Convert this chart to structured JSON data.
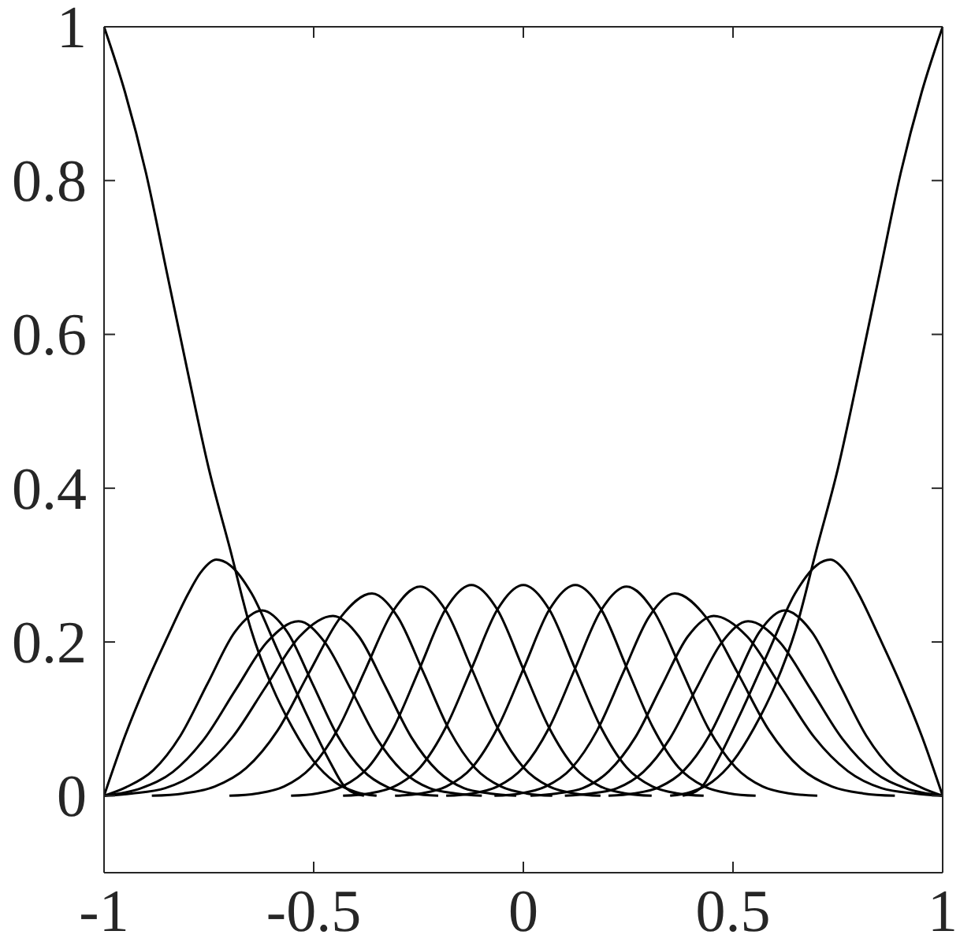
{
  "chart_data": {
    "type": "line",
    "xlim": [
      -1,
      1
    ],
    "ylim": [
      -0.1,
      1
    ],
    "xticks": [
      -1,
      -0.5,
      0,
      0.5,
      1
    ],
    "yticks": [
      0,
      0.2,
      0.4,
      0.6,
      0.8,
      1
    ],
    "line_style": "solid",
    "series": [
      {
        "color": "#000000",
        "x": [
          -1,
          -0.95,
          -0.9,
          -0.85,
          -0.8,
          -0.75,
          -0.7,
          -0.65,
          -0.6,
          -0.55,
          -0.5,
          -0.45,
          -0.4,
          -0.35
        ],
        "values": [
          1,
          0.915,
          0.81,
          0.68,
          0.55,
          0.425,
          0.322,
          0.217,
          0.143,
          0.088,
          0.045,
          0.018,
          0.005,
          0
        ]
      },
      {
        "color": "#000000",
        "x": [
          -1,
          -0.95,
          -0.9,
          -0.85,
          -0.8,
          -0.77,
          -0.732,
          -0.7,
          -0.648,
          -0.585,
          -0.523,
          -0.461,
          -0.423,
          -0.38
        ],
        "values": [
          0,
          0.078,
          0.145,
          0.205,
          0.262,
          0.29,
          0.307,
          0.3,
          0.263,
          0.188,
          0.113,
          0.044,
          0.01,
          0
        ]
      },
      {
        "color": "#000000",
        "x": [
          -1,
          -0.948,
          -0.883,
          -0.818,
          -0.753,
          -0.688,
          -0.623,
          -0.563,
          -0.503,
          -0.443,
          -0.383,
          -0.323,
          -0.263,
          -0.203
        ],
        "values": [
          0,
          0.011,
          0.033,
          0.078,
          0.146,
          0.213,
          0.241,
          0.213,
          0.146,
          0.078,
          0.033,
          0.011,
          0.003,
          0
        ]
      },
      {
        "color": "#000000",
        "x": [
          -1,
          -0.911,
          -0.836,
          -0.761,
          -0.686,
          -0.611,
          -0.536,
          -0.474,
          -0.411,
          -0.349,
          -0.286,
          -0.224,
          -0.161,
          -0.099
        ],
        "values": [
          0,
          0.01,
          0.031,
          0.074,
          0.138,
          0.2,
          0.227,
          0.2,
          0.138,
          0.074,
          0.031,
          0.01,
          0.003,
          0
        ]
      },
      {
        "color": "#000000",
        "x": [
          -1,
          -0.934,
          -0.854,
          -0.774,
          -0.694,
          -0.614,
          -0.534,
          -0.454,
          -0.392,
          -0.329,
          -0.267,
          -0.204,
          -0.142,
          -0.079,
          -0.017
        ],
        "values": [
          0,
          0.003,
          0.01,
          0.032,
          0.076,
          0.142,
          0.207,
          0.234,
          0.207,
          0.142,
          0.076,
          0.032,
          0.01,
          0.003,
          0
        ]
      },
      {
        "color": "#000000",
        "x": [
          -0.886,
          -0.811,
          -0.736,
          -0.661,
          -0.586,
          -0.511,
          -0.436,
          -0.361,
          -0.299,
          -0.238,
          -0.176,
          -0.115,
          -0.053,
          0.008,
          0.069
        ],
        "values": [
          0,
          0.003,
          0.012,
          0.036,
          0.085,
          0.16,
          0.232,
          0.263,
          0.232,
          0.16,
          0.085,
          0.036,
          0.012,
          0.003,
          0
        ]
      },
      {
        "color": "#000000",
        "x": [
          -0.701,
          -0.636,
          -0.571,
          -0.506,
          -0.441,
          -0.376,
          -0.311,
          -0.246,
          -0.184,
          -0.123,
          -0.061,
          0,
          0.062,
          0.123,
          0.184
        ],
        "values": [
          0,
          0.003,
          0.012,
          0.037,
          0.088,
          0.165,
          0.24,
          0.272,
          0.24,
          0.165,
          0.088,
          0.037,
          0.012,
          0.003,
          0
        ]
      },
      {
        "color": "#000000",
        "x": [
          -0.554,
          -0.493,
          -0.432,
          -0.37,
          -0.309,
          -0.247,
          -0.186,
          -0.124,
          -0.062,
          -0.001,
          0.061,
          0.122,
          0.184,
          0.245,
          0.306
        ],
        "values": [
          0,
          0.003,
          0.012,
          0.037,
          0.089,
          0.166,
          0.242,
          0.274,
          0.242,
          0.166,
          0.089,
          0.037,
          0.012,
          0.003,
          0
        ]
      },
      {
        "color": "#000000",
        "x": [
          -0.43,
          -0.369,
          -0.308,
          -0.246,
          -0.185,
          -0.123,
          -0.062,
          0,
          0.062,
          0.123,
          0.185,
          0.246,
          0.308,
          0.369,
          0.43
        ],
        "values": [
          0,
          0.003,
          0.012,
          0.037,
          0.089,
          0.166,
          0.242,
          0.274,
          0.242,
          0.166,
          0.089,
          0.037,
          0.012,
          0.003,
          0
        ]
      },
      {
        "color": "#000000",
        "x": [
          -0.306,
          -0.245,
          -0.184,
          -0.122,
          -0.061,
          0.001,
          0.062,
          0.124,
          0.186,
          0.247,
          0.309,
          0.37,
          0.432,
          0.493,
          0.554
        ],
        "values": [
          0,
          0.003,
          0.012,
          0.037,
          0.089,
          0.166,
          0.242,
          0.274,
          0.242,
          0.166,
          0.089,
          0.037,
          0.012,
          0.003,
          0
        ]
      },
      {
        "color": "#000000",
        "x": [
          -0.184,
          -0.123,
          -0.062,
          0,
          0.061,
          0.123,
          0.184,
          0.246,
          0.311,
          0.376,
          0.441,
          0.506,
          0.571,
          0.636,
          0.701
        ],
        "values": [
          0,
          0.003,
          0.012,
          0.037,
          0.088,
          0.165,
          0.24,
          0.272,
          0.24,
          0.165,
          0.088,
          0.037,
          0.012,
          0.003,
          0
        ]
      },
      {
        "color": "#000000",
        "x": [
          -0.069,
          -0.008,
          0.053,
          0.115,
          0.176,
          0.238,
          0.299,
          0.361,
          0.436,
          0.511,
          0.586,
          0.661,
          0.736,
          0.811,
          0.886
        ],
        "values": [
          0,
          0.003,
          0.012,
          0.036,
          0.085,
          0.16,
          0.232,
          0.263,
          0.232,
          0.16,
          0.085,
          0.036,
          0.012,
          0.003,
          0
        ]
      },
      {
        "color": "#000000",
        "x": [
          0.017,
          0.079,
          0.142,
          0.204,
          0.267,
          0.329,
          0.392,
          0.454,
          0.534,
          0.614,
          0.694,
          0.774,
          0.854,
          0.934,
          1
        ],
        "values": [
          0,
          0.003,
          0.01,
          0.032,
          0.076,
          0.142,
          0.207,
          0.234,
          0.207,
          0.142,
          0.076,
          0.032,
          0.01,
          0.003,
          0
        ]
      },
      {
        "color": "#000000",
        "x": [
          0.099,
          0.161,
          0.224,
          0.286,
          0.349,
          0.411,
          0.474,
          0.536,
          0.611,
          0.686,
          0.761,
          0.836,
          0.911,
          1
        ],
        "values": [
          0,
          0.003,
          0.01,
          0.031,
          0.074,
          0.138,
          0.2,
          0.227,
          0.2,
          0.138,
          0.074,
          0.031,
          0.01,
          0
        ]
      },
      {
        "color": "#000000",
        "x": [
          0.203,
          0.263,
          0.323,
          0.383,
          0.443,
          0.503,
          0.563,
          0.623,
          0.688,
          0.753,
          0.818,
          0.883,
          0.948,
          1
        ],
        "values": [
          0,
          0.003,
          0.011,
          0.033,
          0.078,
          0.146,
          0.213,
          0.241,
          0.213,
          0.146,
          0.078,
          0.033,
          0.011,
          0
        ]
      },
      {
        "color": "#000000",
        "x": [
          0.38,
          0.423,
          0.461,
          0.523,
          0.585,
          0.648,
          0.7,
          0.732,
          0.77,
          0.8,
          0.85,
          0.9,
          0.95,
          1
        ],
        "values": [
          0,
          0.01,
          0.044,
          0.113,
          0.188,
          0.263,
          0.3,
          0.307,
          0.29,
          0.262,
          0.205,
          0.145,
          0.078,
          0
        ]
      },
      {
        "color": "#000000",
        "x": [
          0.35,
          0.4,
          0.45,
          0.5,
          0.55,
          0.6,
          0.65,
          0.7,
          0.75,
          0.8,
          0.85,
          0.9,
          0.95,
          1
        ],
        "values": [
          0,
          0.005,
          0.018,
          0.045,
          0.088,
          0.143,
          0.217,
          0.322,
          0.425,
          0.55,
          0.68,
          0.81,
          0.915,
          1
        ]
      }
    ]
  }
}
